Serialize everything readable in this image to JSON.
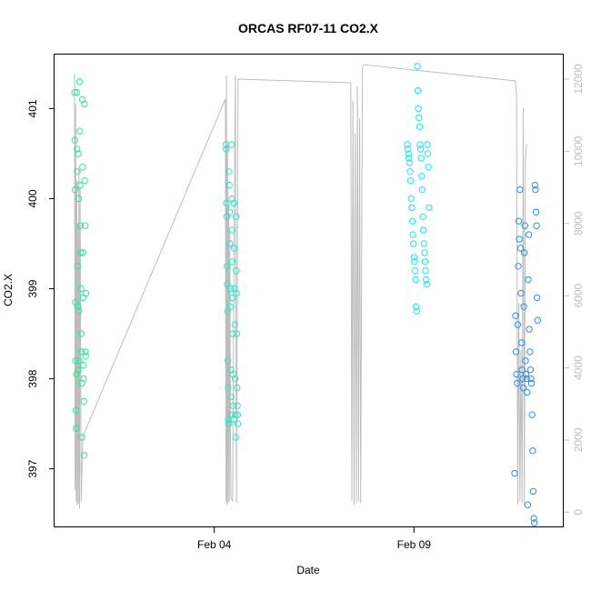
{
  "chart_data": {
    "type": "scatter",
    "title": "ORCAS RF07-11 CO2.X",
    "xlabel": "Date",
    "ylabel": "CO2.X",
    "x_ticks": [
      "Feb 04",
      "Feb 09"
    ],
    "y_ticks": [
      397,
      398,
      399,
      400,
      401
    ],
    "y_right_ticks": [
      0,
      2000,
      4000,
      6000,
      8000,
      10000,
      12000
    ],
    "xlim": [
      "2016-01-31 00:00",
      "2016-02-12 18:00"
    ],
    "ylim": [
      396.35,
      401.6
    ],
    "y_right_lim": [
      -420,
      12680
    ],
    "grid": false,
    "legend": "none",
    "colors": {
      "frame": "#000000",
      "altitude_line": "#bdbdbd",
      "flights": [
        "#2de89a",
        "#29e6c7",
        "#17e8f0",
        "#2b8df0"
      ]
    },
    "altitude_series": {
      "x": [
        "2016-01-31 12:00",
        "2016-01-31 12:20",
        "2016-01-31 12:40",
        "2016-01-31 13:00",
        "2016-01-31 13:20",
        "2016-01-31 13:40",
        "2016-01-31 14:00",
        "2016-01-31 14:20",
        "2016-01-31 14:40",
        "2016-01-31 15:00",
        "2016-01-31 15:20",
        "2016-01-31 16:00",
        "2016-01-31 17:00",
        "2016-02-04 06:40",
        "2016-02-04 07:00",
        "2016-02-04 07:20",
        "2016-02-04 07:40",
        "2016-02-04 08:00",
        "2016-02-04 08:20",
        "2016-02-04 08:40",
        "2016-02-04 09:00",
        "2016-02-04 09:20",
        "2016-02-04 09:40",
        "2016-02-04 10:00",
        "2016-02-04 11:00",
        "2016-02-04 12:00",
        "2016-02-04 12:40",
        "2016-02-04 13:20",
        "2016-02-04 14:20",
        "2016-02-07 10:00",
        "2016-02-07 10:40",
        "2016-02-07 11:20",
        "2016-02-07 12:00",
        "2016-02-07 12:40",
        "2016-02-07 13:20",
        "2016-02-07 14:00",
        "2016-02-07 14:40",
        "2016-02-07 15:20",
        "2016-02-07 16:00",
        "2016-02-07 17:00",
        "2016-02-07 18:00",
        "2016-02-11 13:00",
        "2016-02-11 13:40",
        "2016-02-11 14:20",
        "2016-02-11 15:00",
        "2016-02-11 15:40",
        "2016-02-11 16:20",
        "2016-02-11 17:00",
        "2016-02-11 17:40",
        "2016-02-11 18:20",
        "2016-02-11 19:00",
        "2016-02-11 19:40"
      ],
      "values": [
        12150,
        600,
        11300,
        300,
        9200,
        200,
        8000,
        250,
        9500,
        100,
        9000,
        300,
        2100,
        11450,
        300,
        12100,
        200,
        10200,
        250,
        8500,
        300,
        7800,
        2400,
        400,
        300,
        7950,
        12100,
        250,
        12000,
        11900,
        300,
        11400,
        200,
        10500,
        250,
        11800,
        300,
        10900,
        250,
        12300,
        12400,
        11950,
        11600,
        200,
        5800,
        300,
        4500,
        250,
        11200,
        200,
        9800,
        10200
      ]
    },
    "series": [
      {
        "x": [
          "2016-01-31 12:05",
          "2016-01-31 12:10",
          "2016-01-31 12:20",
          "2016-01-31 12:30",
          "2016-01-31 12:40",
          "2016-01-31 12:50",
          "2016-01-31 13:00",
          "2016-01-31 13:10",
          "2016-01-31 13:20",
          "2016-01-31 13:30",
          "2016-01-31 13:40",
          "2016-01-31 13:50",
          "2016-01-31 14:00",
          "2016-01-31 14:10",
          "2016-01-31 14:20",
          "2016-01-31 14:30",
          "2016-01-31 14:40",
          "2016-01-31 14:50",
          "2016-01-31 15:00",
          "2016-01-31 15:10",
          "2016-01-31 15:20",
          "2016-01-31 15:30",
          "2016-01-31 15:40",
          "2016-01-31 15:50",
          "2016-01-31 16:00",
          "2016-01-31 16:10",
          "2016-01-31 16:20",
          "2016-01-31 16:30",
          "2016-01-31 16:40",
          "2016-01-31 16:50",
          "2016-01-31 17:00",
          "2016-01-31 17:10",
          "2016-01-31 17:20",
          "2016-01-31 17:30",
          "2016-01-31 17:40",
          "2016-01-31 17:50",
          "2016-01-31 18:00",
          "2016-01-31 18:10",
          "2016-01-31 18:20",
          "2016-01-31 18:30",
          "2016-01-31 18:40",
          "2016-01-31 18:50"
        ],
        "values": [
          401.18,
          400.65,
          400.1,
          398.85,
          398.2,
          397.65,
          397.45,
          398.05,
          401.18,
          400.55,
          400.3,
          399.25,
          398.8,
          398.1,
          400.5,
          400.0,
          398.75,
          398.2,
          401.3,
          400.75,
          400.15,
          399.7,
          399.4,
          399.0,
          398.5,
          398.3,
          397.95,
          397.35,
          401.1,
          400.35,
          399.4,
          398.9,
          398.15,
          398.0,
          397.75,
          397.15,
          401.05,
          400.2,
          399.7,
          398.3,
          398.25,
          398.95
        ]
      },
      {
        "x": [
          "2016-02-04 07:00",
          "2016-02-04 07:10",
          "2016-02-04 07:20",
          "2016-02-04 07:30",
          "2016-02-04 07:40",
          "2016-02-04 07:50",
          "2016-02-04 08:00",
          "2016-02-04 08:10",
          "2016-02-04 08:20",
          "2016-02-04 08:30",
          "2016-02-04 08:40",
          "2016-02-04 08:50",
          "2016-02-04 09:00",
          "2016-02-04 09:10",
          "2016-02-04 09:20",
          "2016-02-04 09:30",
          "2016-02-04 09:40",
          "2016-02-04 09:50",
          "2016-02-04 10:00",
          "2016-02-04 10:10",
          "2016-02-04 10:20",
          "2016-02-04 10:30",
          "2016-02-04 10:40",
          "2016-02-04 10:50",
          "2016-02-04 11:00",
          "2016-02-04 11:10",
          "2016-02-04 11:20",
          "2016-02-04 11:30",
          "2016-02-04 11:40",
          "2016-02-04 11:50",
          "2016-02-04 12:00",
          "2016-02-04 12:10",
          "2016-02-04 12:20",
          "2016-02-04 12:30",
          "2016-02-04 12:40",
          "2016-02-04 12:50",
          "2016-02-04 13:00",
          "2016-02-04 13:10",
          "2016-02-04 13:20",
          "2016-02-04 13:30",
          "2016-02-04 13:40",
          "2016-02-04 13:50",
          "2016-02-04 14:00",
          "2016-02-04 14:10"
        ],
        "values": [
          400.6,
          400.55,
          399.95,
          399.8,
          399.25,
          399.05,
          398.75,
          398.2,
          397.9,
          397.55,
          397.5,
          400.3,
          400.15,
          399.85,
          399.5,
          399.0,
          398.8,
          398.1,
          397.8,
          397.6,
          400.6,
          400.0,
          399.65,
          399.3,
          398.9,
          398.5,
          398.05,
          397.7,
          397.55,
          399.95,
          399.45,
          399.0,
          398.6,
          398.0,
          397.6,
          397.35,
          399.8,
          399.2,
          398.95,
          398.5,
          397.9,
          397.7,
          397.6,
          397.5
        ]
      },
      {
        "x": [
          "2016-02-08 20:00",
          "2016-02-08 20:20",
          "2016-02-08 20:40",
          "2016-02-08 21:00",
          "2016-02-08 21:20",
          "2016-02-08 21:40",
          "2016-02-08 22:00",
          "2016-02-08 22:20",
          "2016-02-08 22:40",
          "2016-02-08 23:00",
          "2016-02-08 23:20",
          "2016-02-08 23:40",
          "2016-02-09 00:00",
          "2016-02-09 00:20",
          "2016-02-09 00:40",
          "2016-02-09 01:00",
          "2016-02-09 01:20",
          "2016-02-09 01:40",
          "2016-02-09 02:00",
          "2016-02-09 02:20",
          "2016-02-09 02:40",
          "2016-02-09 03:00",
          "2016-02-09 03:20",
          "2016-02-09 03:40",
          "2016-02-09 04:00",
          "2016-02-09 04:20",
          "2016-02-09 04:40",
          "2016-02-09 05:00",
          "2016-02-09 05:20",
          "2016-02-09 05:40",
          "2016-02-09 06:00",
          "2016-02-09 06:20",
          "2016-02-09 06:40",
          "2016-02-09 07:00",
          "2016-02-09 07:20",
          "2016-02-09 07:40",
          "2016-02-09 08:00",
          "2016-02-09 08:20",
          "2016-02-09 08:40",
          "2016-02-09 09:00"
        ],
        "values": [
          400.6,
          400.55,
          400.5,
          400.45,
          400.4,
          400.3,
          400.2,
          400.0,
          399.9,
          399.75,
          399.6,
          399.5,
          399.35,
          399.3,
          399.2,
          399.1,
          398.8,
          398.75,
          401.47,
          401.2,
          401.0,
          400.9,
          400.8,
          400.6,
          400.55,
          400.45,
          400.25,
          400.1,
          399.8,
          399.65,
          399.5,
          399.4,
          399.3,
          399.2,
          399.1,
          399.05,
          400.6,
          400.5,
          400.35,
          399.9
        ]
      },
      {
        "x": [
          "2016-02-11 12:30",
          "2016-02-11 13:00",
          "2016-02-11 13:20",
          "2016-02-11 13:40",
          "2016-02-11 14:00",
          "2016-02-11 14:20",
          "2016-02-11 14:40",
          "2016-02-11 15:00",
          "2016-02-11 15:20",
          "2016-02-11 15:40",
          "2016-02-11 16:00",
          "2016-02-11 16:20",
          "2016-02-11 16:40",
          "2016-02-11 17:00",
          "2016-02-11 17:20",
          "2016-02-11 17:40",
          "2016-02-11 18:00",
          "2016-02-11 18:20",
          "2016-02-11 18:40",
          "2016-02-11 19:00",
          "2016-02-11 19:20",
          "2016-02-11 19:40",
          "2016-02-11 20:00",
          "2016-02-11 20:20",
          "2016-02-11 20:40",
          "2016-02-11 21:00",
          "2016-02-11 21:20",
          "2016-02-11 21:40",
          "2016-02-11 22:00",
          "2016-02-11 22:20",
          "2016-02-11 22:40",
          "2016-02-11 23:00",
          "2016-02-11 23:20",
          "2016-02-11 23:40",
          "2016-02-12 00:00",
          "2016-02-12 00:20",
          "2016-02-12 00:40",
          "2016-02-12 01:00",
          "2016-02-12 01:20",
          "2016-02-12 01:40",
          "2016-02-12 02:00",
          "2016-02-12 02:20"
        ],
        "values": [
          396.95,
          398.7,
          398.3,
          398.05,
          397.95,
          398.6,
          399.25,
          399.75,
          399.55,
          400.1,
          399.45,
          398.95,
          398.4,
          398.1,
          398.0,
          397.9,
          398.8,
          399.4,
          399.7,
          398.2,
          398.05,
          398.0,
          397.85,
          396.6,
          399.1,
          399.6,
          398.55,
          398.3,
          398.1,
          398.0,
          397.95,
          397.6,
          397.2,
          396.75,
          396.45,
          396.4,
          400.15,
          400.1,
          399.85,
          399.7,
          398.9,
          398.65
        ]
      }
    ]
  }
}
